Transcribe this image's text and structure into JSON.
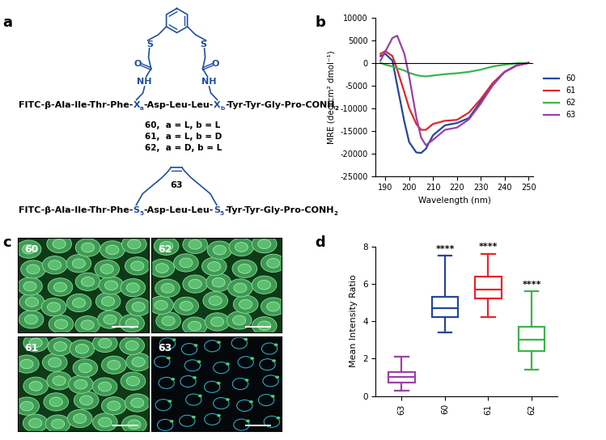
{
  "panels": [
    "a",
    "b",
    "c",
    "d"
  ],
  "structures": {
    "sequence_1": [
      {
        "text": "FITC-β-Ala-Ile-Thr-Phe-",
        "residue": "X",
        "sub": "a"
      },
      {
        "text": "-Asp-Leu-Leu-",
        "residue": "X",
        "sub": "b"
      },
      {
        "text": "-Tyr-Tyr-Gly-Pro-CONH",
        "sub": "2"
      }
    ],
    "linker_labels": {
      "carbonyl": "O",
      "amide": "NH",
      "thioether": "S"
    },
    "compounds": [
      "60,  a = L, b = L",
      "61,  a = L, b = D",
      "62,  a = D, b = L"
    ],
    "sequence_2": [
      {
        "text": "FITC-β-Ala-Ile-Thr-Phe-",
        "residue": "S",
        "sub": "5"
      },
      {
        "text": "-Asp-Leu-Leu-",
        "residue": "S",
        "sub": "5"
      },
      {
        "text": "-Tyr-Tyr-Gly-Pro-CONH",
        "sub": "2"
      }
    ],
    "compound_2": "63"
  },
  "images": {
    "labels": [
      "60",
      "62",
      "61",
      "63"
    ]
  },
  "chart_data": [
    {
      "type": "line",
      "xlabel": "Wavelength (nm)",
      "ylabel": "MRE (deg cm² dmol⁻¹)",
      "x": [
        188,
        190,
        193,
        195,
        198,
        200,
        203,
        205,
        207,
        210,
        215,
        220,
        225,
        230,
        235,
        240,
        245,
        250
      ],
      "series": [
        {
          "name": "60",
          "color": "#2346a0",
          "values": [
            1500,
            2000,
            500,
            -5000,
            -13000,
            -17500,
            -19800,
            -19900,
            -19000,
            -16000,
            -13800,
            -13300,
            -12200,
            -8500,
            -4500,
            -2000,
            -600,
            0
          ]
        },
        {
          "name": "61",
          "color": "#e5252a",
          "values": [
            2000,
            2600,
            1500,
            -1500,
            -6500,
            -10000,
            -13500,
            -14800,
            -14800,
            -13500,
            -12800,
            -12600,
            -11000,
            -8000,
            -4500,
            -2000,
            -600,
            0
          ]
        },
        {
          "name": "62",
          "color": "#3bb54a",
          "values": [
            0,
            -400,
            -800,
            -1200,
            -1700,
            -2200,
            -2700,
            -2900,
            -3000,
            -2800,
            -2500,
            -2300,
            -2000,
            -1500,
            -800,
            -400,
            -100,
            0
          ]
        },
        {
          "name": "63",
          "color": "#9c3fa8",
          "values": [
            500,
            2500,
            5500,
            6000,
            2000,
            -3000,
            -12000,
            -16500,
            -18200,
            -17000,
            -14800,
            -14300,
            -12500,
            -9000,
            -5000,
            -2000,
            -500,
            0
          ]
        }
      ],
      "xlim": [
        186,
        252
      ],
      "xticks": [
        190,
        200,
        210,
        220,
        230,
        240,
        250
      ],
      "ylim": [
        -25000,
        10000
      ],
      "yticks": [
        -25000,
        -20000,
        -15000,
        -10000,
        -5000,
        0,
        5000,
        10000
      ],
      "legend": "right"
    },
    {
      "type": "box",
      "ylabel": "Mean Intensity Ratio",
      "categories": [
        "63",
        "60",
        "61",
        "62"
      ],
      "colors": [
        "#9c3fa8",
        "#2346a0",
        "#e5252a",
        "#3bb54a"
      ],
      "min": [
        0.3,
        3.4,
        4.2,
        1.4
      ],
      "q1": [
        0.7,
        4.2,
        5.2,
        2.4
      ],
      "median": [
        1.0,
        4.7,
        5.7,
        3.0
      ],
      "q3": [
        1.3,
        5.3,
        6.4,
        3.7
      ],
      "max": [
        2.1,
        7.5,
        7.6,
        5.6
      ],
      "annotations": [
        null,
        "****",
        "****",
        "****"
      ],
      "ylim": [
        0,
        8
      ],
      "yticks": [
        0,
        2,
        4,
        6,
        8
      ]
    }
  ]
}
